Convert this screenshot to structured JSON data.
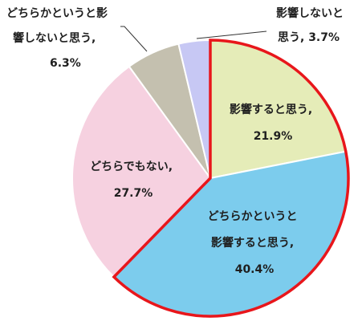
{
  "chart_data": {
    "type": "pie",
    "title": "",
    "start_angle_deg": 0,
    "direction": "clockwise",
    "highlight_color": "#e8161b",
    "slices": [
      {
        "name": "影響すると思う",
        "value": 21.9,
        "color": "#e5ecb8",
        "highlight": true,
        "label_lines": [
          "影響すると思う,",
          "21.9%"
        ]
      },
      {
        "name": "どちらかというと影響すると思う",
        "value": 40.4,
        "color": "#7ccced",
        "highlight": true,
        "label_lines": [
          "どちらかというと",
          "影響すると思う,",
          "40.4%"
        ]
      },
      {
        "name": "どちらでもない",
        "value": 27.7,
        "color": "#f6d1e0",
        "highlight": false,
        "label_lines": [
          "どちらでもない,",
          "27.7%"
        ]
      },
      {
        "name": "どちらかというと影響しないと思う",
        "value": 6.3,
        "color": "#c4c0af",
        "highlight": false,
        "label_lines": [
          "どちらかというと影",
          "響しないと思う,",
          "6.3%"
        ]
      },
      {
        "name": "影響しないと思う",
        "value": 3.7,
        "color": "#c7c8f4",
        "highlight": false,
        "label_lines": [
          "影響しないと",
          "思う, 3.7%"
        ]
      }
    ]
  }
}
